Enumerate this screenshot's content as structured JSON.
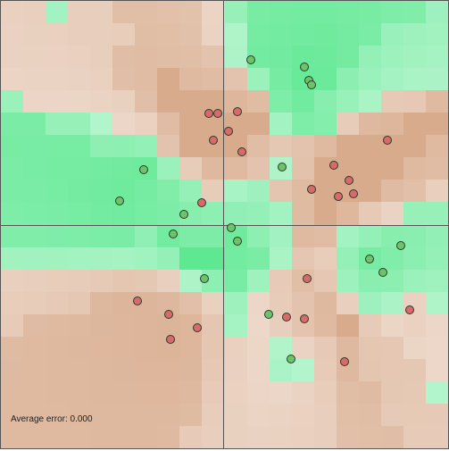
{
  "status": {
    "error_text": "Average error: 0.000"
  },
  "colors": {
    "positive_point": "#6dc36a",
    "negative_point": "#d86a6a",
    "positive_region": "#55e78c",
    "negative_region": "#d6a787",
    "axis": "#555555"
  },
  "points": [
    {
      "x": 0.12,
      "y": 0.74,
      "label": "positive"
    },
    {
      "x": 0.36,
      "y": 0.71,
      "label": "positive"
    },
    {
      "x": 0.38,
      "y": 0.65,
      "label": "positive"
    },
    {
      "x": 0.39,
      "y": 0.63,
      "label": "positive"
    },
    {
      "x": 0.26,
      "y": 0.26,
      "label": "positive"
    },
    {
      "x": -0.36,
      "y": 0.25,
      "label": "positive"
    },
    {
      "x": -0.18,
      "y": 0.05,
      "label": "positive"
    },
    {
      "x": -0.47,
      "y": 0.11,
      "label": "positive"
    },
    {
      "x": 0.03,
      "y": -0.01,
      "label": "positive"
    },
    {
      "x": -0.23,
      "y": -0.04,
      "label": "positive"
    },
    {
      "x": 0.06,
      "y": -0.07,
      "label": "positive"
    },
    {
      "x": 0.79,
      "y": -0.09,
      "label": "positive"
    },
    {
      "x": 0.65,
      "y": -0.15,
      "label": "positive"
    },
    {
      "x": 0.71,
      "y": -0.21,
      "label": "positive"
    },
    {
      "x": -0.09,
      "y": -0.24,
      "label": "positive"
    },
    {
      "x": 0.2,
      "y": -0.4,
      "label": "positive"
    },
    {
      "x": 0.3,
      "y": -0.6,
      "label": "positive"
    },
    {
      "x": -0.07,
      "y": 0.5,
      "label": "negative"
    },
    {
      "x": -0.03,
      "y": 0.5,
      "label": "negative"
    },
    {
      "x": 0.06,
      "y": 0.51,
      "label": "negative"
    },
    {
      "x": 0.02,
      "y": 0.42,
      "label": "negative"
    },
    {
      "x": -0.05,
      "y": 0.38,
      "label": "negative"
    },
    {
      "x": 0.08,
      "y": 0.33,
      "label": "negative"
    },
    {
      "x": -0.1,
      "y": 0.1,
      "label": "negative"
    },
    {
      "x": 0.73,
      "y": 0.38,
      "label": "negative"
    },
    {
      "x": 0.49,
      "y": 0.27,
      "label": "negative"
    },
    {
      "x": 0.56,
      "y": 0.2,
      "label": "negative"
    },
    {
      "x": 0.39,
      "y": 0.16,
      "label": "negative"
    },
    {
      "x": 0.51,
      "y": 0.13,
      "label": "negative"
    },
    {
      "x": 0.58,
      "y": 0.14,
      "label": "negative"
    },
    {
      "x": 0.37,
      "y": -0.24,
      "label": "negative"
    },
    {
      "x": -0.39,
      "y": -0.34,
      "label": "negative"
    },
    {
      "x": -0.25,
      "y": -0.4,
      "label": "negative"
    },
    {
      "x": -0.12,
      "y": -0.46,
      "label": "negative"
    },
    {
      "x": -0.24,
      "y": -0.51,
      "label": "negative"
    },
    {
      "x": 0.28,
      "y": -0.41,
      "label": "negative"
    },
    {
      "x": 0.36,
      "y": -0.42,
      "label": "negative"
    },
    {
      "x": 0.83,
      "y": -0.38,
      "label": "negative"
    },
    {
      "x": 0.54,
      "y": -0.61,
      "label": "negative"
    }
  ]
}
